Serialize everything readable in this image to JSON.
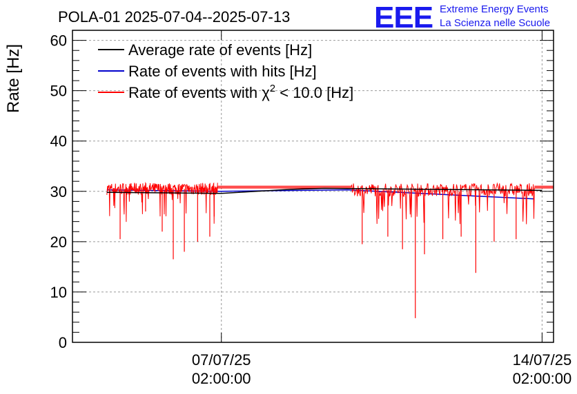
{
  "header": {
    "title": "POLA-01 2025-07-04--2025-07-13"
  },
  "logo": {
    "mark": "EEE",
    "line1": "Extreme Energy Events",
    "line2": "La Scienza nelle Scuole"
  },
  "colors": {
    "average": "#000000",
    "hits": "#0000cc",
    "chi2": "#ff0000",
    "grid": "#999999",
    "logo": "#1a1aee"
  },
  "chart_data": {
    "type": "line",
    "title": "POLA-01 2025-07-04--2025-07-13",
    "xlabel": "",
    "ylabel": "Rate [Hz]",
    "ylim": [
      0,
      62
    ],
    "yticks": [
      "0",
      "10",
      "20",
      "30",
      "40",
      "50",
      "60"
    ],
    "yticks_values": [
      0,
      10,
      20,
      30,
      40,
      50,
      60
    ],
    "xticks": [
      {
        "line1": "07/07/25",
        "line2": "02:00:00",
        "value": "2025-07-07 02:00:00"
      },
      {
        "line1": "14/07/25",
        "line2": "02:00:00",
        "value": "2025-07-14 02:00:00"
      }
    ],
    "grid": true,
    "legend_position": "top-left",
    "legend": [
      {
        "text": "Average rate of events [Hz]",
        "color": "#000000"
      },
      {
        "text": "Rate of events with hits [Hz]",
        "color": "#0000cc"
      },
      {
        "text_pre": "Rate of events with ",
        "chi": "χ",
        "sup": "2",
        "text_post": " < 10.0 [Hz]",
        "color": "#ff0000"
      }
    ],
    "series": [
      {
        "name": "Average rate of events [Hz]",
        "color": "#000000",
        "x": [
          "2025-07-04 14:00",
          "2025-07-07 02:00",
          "2025-07-08 14:00",
          "2025-07-09 08:00",
          "2025-07-14 02:00"
        ],
        "values": [
          29.8,
          29.6,
          30.4,
          30.6,
          30.2
        ]
      },
      {
        "name": "Rate of events with hits [Hz]",
        "color": "#0000cc",
        "x": [
          "2025-07-04 14:00",
          "2025-07-07 01:00",
          "2025-07-09 20:00",
          "2025-07-13 22:00"
        ],
        "values": [
          30.3,
          30.0,
          30.3,
          28.5
        ]
      },
      {
        "name": "Rate of events with χ2 < 10.0 [Hz]",
        "color": "#ff0000",
        "segments": [
          {
            "start": "2025-07-04 14:00",
            "end": "2025-07-07 00:00",
            "mean": 30.5,
            "noise": 1.2,
            "dips": [
              [
                0.12,
                20.5
              ],
              [
                0.35,
                26.0
              ],
              [
                0.5,
                22.0
              ],
              [
                0.6,
                16.5
              ],
              [
                0.7,
                18.0
              ],
              [
                0.82,
                20.0
              ],
              [
                0.93,
                21.0
              ],
              [
                0.97,
                25.0
              ]
            ]
          },
          {
            "start": "2025-07-09 22:00",
            "end": "2025-07-13 22:00",
            "mean": 30.3,
            "noise": 1.3,
            "dips": [
              [
                0.06,
                19.5
              ],
              [
                0.2,
                21.0
              ],
              [
                0.28,
                18.5
              ],
              [
                0.35,
                4.8
              ],
              [
                0.4,
                17.5
              ],
              [
                0.5,
                20.5
              ],
              [
                0.6,
                21.0
              ],
              [
                0.68,
                13.8
              ],
              [
                0.78,
                20.0
              ],
              [
                0.9,
                20.5
              ]
            ]
          }
        ],
        "flat_levels": [
          31.0,
          30.7
        ]
      }
    ]
  }
}
